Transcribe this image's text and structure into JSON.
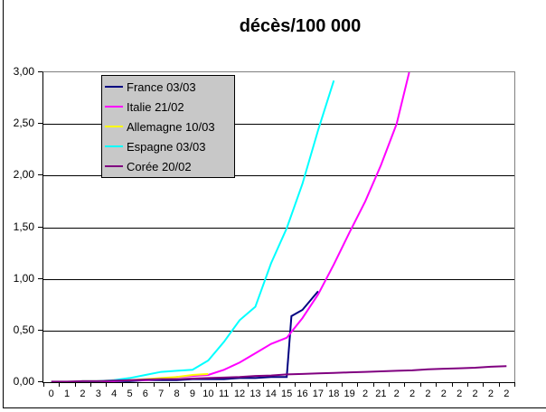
{
  "title": "décès/100 000",
  "chart_data": {
    "type": "line",
    "title": "décès/100 000",
    "x_axis": {
      "slots": 30,
      "labels": [
        "0",
        "1",
        "2",
        "3",
        "4",
        "5",
        "6",
        "7",
        "8",
        "9",
        "10",
        "11",
        "12",
        "13",
        "14",
        "15",
        "16",
        "17",
        "18",
        "19",
        "2",
        "21",
        "2",
        "2",
        "2",
        "2",
        "2",
        "2",
        "2",
        "2"
      ]
    },
    "y_axis": {
      "min": 0,
      "max": 3,
      "tick_values": [
        0,
        0.5,
        1,
        1.5,
        2,
        2.5,
        3
      ],
      "tick_labels": [
        "0,00",
        "0,50",
        "1,00",
        "1,50",
        "2,00",
        "2,50",
        "3,00"
      ]
    },
    "grid": {
      "horizontal_step": 0.5,
      "color": "#000000"
    },
    "legend": {
      "position": "top-left-inside-plot",
      "bg": "#c8c8c8",
      "border": "#000000"
    },
    "series": [
      {
        "name": "France 03/03",
        "color": "#000080",
        "points": [
          [
            0,
            0
          ],
          [
            1,
            0
          ],
          [
            2,
            0
          ],
          [
            3,
            0.01
          ],
          [
            4,
            0.01
          ],
          [
            5,
            0.01
          ],
          [
            6,
            0.02
          ],
          [
            7,
            0.02
          ],
          [
            8,
            0.02
          ],
          [
            9,
            0.03
          ],
          [
            10,
            0.03
          ],
          [
            11,
            0.03
          ],
          [
            12,
            0.04
          ],
          [
            13,
            0.04
          ],
          [
            14,
            0.05
          ],
          [
            15,
            0.05
          ],
          [
            15.3,
            0.64
          ],
          [
            16,
            0.7
          ],
          [
            17,
            0.88
          ]
        ]
      },
      {
        "name": "Italie 21/02",
        "color": "#ff00ff",
        "points": [
          [
            0,
            0
          ],
          [
            1,
            0
          ],
          [
            2,
            0.01
          ],
          [
            3,
            0.01
          ],
          [
            4,
            0.01
          ],
          [
            5,
            0.02
          ],
          [
            6,
            0.02
          ],
          [
            7,
            0.03
          ],
          [
            8,
            0.05
          ],
          [
            9,
            0.06
          ],
          [
            10,
            0.07
          ],
          [
            11,
            0.12
          ],
          [
            12,
            0.19
          ],
          [
            13,
            0.28
          ],
          [
            14,
            0.37
          ],
          [
            15,
            0.43
          ],
          [
            16,
            0.62
          ],
          [
            17,
            0.85
          ],
          [
            18,
            1.14
          ],
          [
            19,
            1.45
          ],
          [
            20,
            1.75
          ],
          [
            21,
            2.1
          ],
          [
            22,
            2.5
          ],
          [
            22.8,
            3.0
          ]
        ]
      },
      {
        "name": "Allemagne 10/03",
        "color": "#ffff00",
        "points": [
          [
            0,
            0
          ],
          [
            1,
            0
          ],
          [
            2,
            0.01
          ],
          [
            3,
            0.01
          ],
          [
            4,
            0.02
          ],
          [
            5,
            0.02
          ],
          [
            6,
            0.03
          ],
          [
            7,
            0.04
          ],
          [
            8,
            0.05
          ],
          [
            9,
            0.07
          ],
          [
            10,
            0.08
          ]
        ]
      },
      {
        "name": "Espagne 03/03",
        "color": "#00ffff",
        "points": [
          [
            0,
            0
          ],
          [
            1,
            0
          ],
          [
            2,
            0.01
          ],
          [
            3,
            0.01
          ],
          [
            4,
            0.02
          ],
          [
            5,
            0.04
          ],
          [
            6,
            0.07
          ],
          [
            7,
            0.1
          ],
          [
            8,
            0.11
          ],
          [
            9,
            0.12
          ],
          [
            10,
            0.21
          ],
          [
            11,
            0.39
          ],
          [
            12,
            0.6
          ],
          [
            13,
            0.73
          ],
          [
            14,
            1.15
          ],
          [
            15,
            1.49
          ],
          [
            16,
            1.92
          ],
          [
            17,
            2.44
          ],
          [
            18,
            2.92
          ]
        ]
      },
      {
        "name": "Corée 20/02",
        "color": "#800080",
        "points": [
          [
            0,
            0.005
          ],
          [
            1,
            0.005
          ],
          [
            2,
            0.01
          ],
          [
            3,
            0.01
          ],
          [
            4,
            0.015
          ],
          [
            5,
            0.02
          ],
          [
            6,
            0.025
          ],
          [
            7,
            0.03
          ],
          [
            8,
            0.03
          ],
          [
            9,
            0.035
          ],
          [
            10,
            0.04
          ],
          [
            11,
            0.045
          ],
          [
            12,
            0.05
          ],
          [
            13,
            0.06
          ],
          [
            14,
            0.065
          ],
          [
            15,
            0.075
          ],
          [
            16,
            0.08
          ],
          [
            17,
            0.085
          ],
          [
            18,
            0.09
          ],
          [
            19,
            0.095
          ],
          [
            20,
            0.1
          ],
          [
            21,
            0.105
          ],
          [
            22,
            0.11
          ],
          [
            23,
            0.115
          ],
          [
            24,
            0.125
          ],
          [
            25,
            0.13
          ],
          [
            26,
            0.135
          ],
          [
            27,
            0.14
          ],
          [
            28,
            0.15
          ],
          [
            29,
            0.155
          ]
        ]
      }
    ]
  }
}
